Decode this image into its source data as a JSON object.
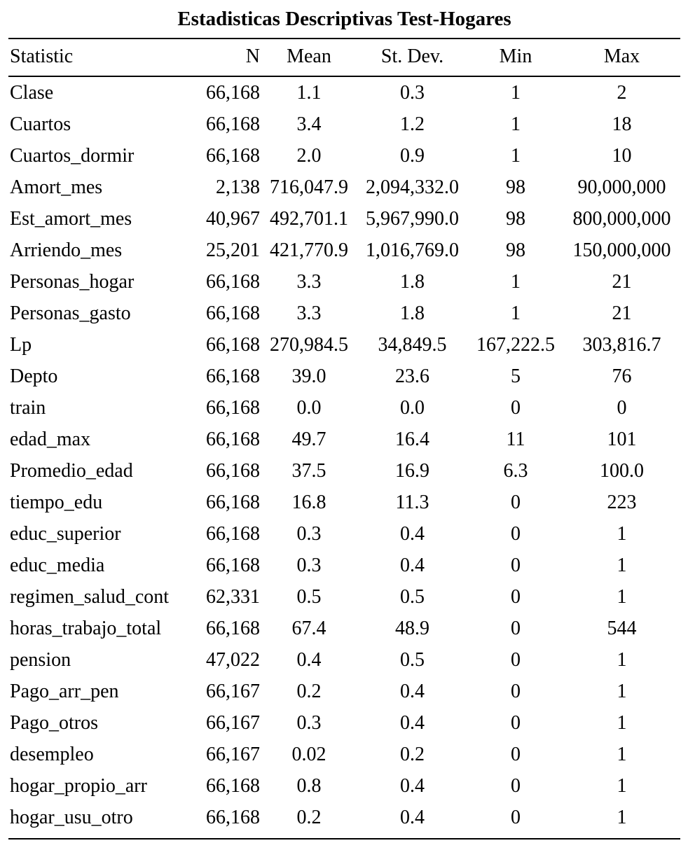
{
  "title": "Estadisticas Descriptivas Test-Hogares",
  "columns": [
    "Statistic",
    "N",
    "Mean",
    "St. Dev.",
    "Min",
    "Max"
  ],
  "rows": [
    [
      "Clase",
      "66,168",
      "1.1",
      "0.3",
      "1",
      "2"
    ],
    [
      "Cuartos",
      "66,168",
      "3.4",
      "1.2",
      "1",
      "18"
    ],
    [
      "Cuartos_dormir",
      "66,168",
      "2.0",
      "0.9",
      "1",
      "10"
    ],
    [
      "Amort_mes",
      "2,138",
      "716,047.9",
      "2,094,332.0",
      "98",
      "90,000,000"
    ],
    [
      "Est_amort_mes",
      "40,967",
      "492,701.1",
      "5,967,990.0",
      "98",
      "800,000,000"
    ],
    [
      "Arriendo_mes",
      "25,201",
      "421,770.9",
      "1,016,769.0",
      "98",
      "150,000,000"
    ],
    [
      "Personas_hogar",
      "66,168",
      "3.3",
      "1.8",
      "1",
      "21"
    ],
    [
      "Personas_gasto",
      "66,168",
      "3.3",
      "1.8",
      "1",
      "21"
    ],
    [
      "Lp",
      "66,168",
      "270,984.5",
      "34,849.5",
      "167,222.5",
      "303,816.7"
    ],
    [
      "Depto",
      "66,168",
      "39.0",
      "23.6",
      "5",
      "76"
    ],
    [
      "train",
      "66,168",
      "0.0",
      "0.0",
      "0",
      "0"
    ],
    [
      "edad_max",
      "66,168",
      "49.7",
      "16.4",
      "11",
      "101"
    ],
    [
      "Promedio_edad",
      "66,168",
      "37.5",
      "16.9",
      "6.3",
      "100.0"
    ],
    [
      "tiempo_edu",
      "66,168",
      "16.8",
      "11.3",
      "0",
      "223"
    ],
    [
      "educ_superior",
      "66,168",
      "0.3",
      "0.4",
      "0",
      "1"
    ],
    [
      "educ_media",
      "66,168",
      "0.3",
      "0.4",
      "0",
      "1"
    ],
    [
      "regimen_salud_cont",
      "62,331",
      "0.5",
      "0.5",
      "0",
      "1"
    ],
    [
      "horas_trabajo_total",
      "66,168",
      "67.4",
      "48.9",
      "0",
      "544"
    ],
    [
      "pension",
      "47,022",
      "0.4",
      "0.5",
      "0",
      "1"
    ],
    [
      "Pago_arr_pen",
      "66,167",
      "0.2",
      "0.4",
      "0",
      "1"
    ],
    [
      "Pago_otros",
      "66,167",
      "0.3",
      "0.4",
      "0",
      "1"
    ],
    [
      "desempleo",
      "66,167",
      "0.02",
      "0.2",
      "0",
      "1"
    ],
    [
      "hogar_propio_arr",
      "66,168",
      "0.8",
      "0.4",
      "0",
      "1"
    ],
    [
      "hogar_usu_otro",
      "66,168",
      "0.2",
      "0.4",
      "0",
      "1"
    ]
  ]
}
